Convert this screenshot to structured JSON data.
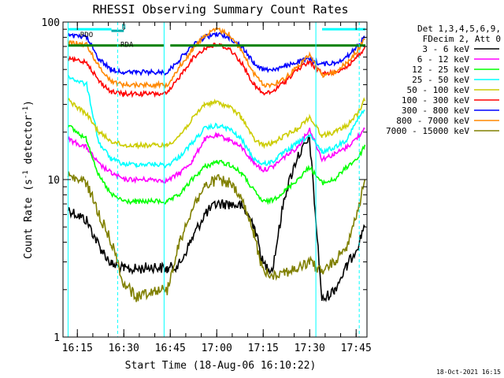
{
  "chart_data": {
    "type": "line",
    "title": "RHESSI Observing Summary Count Rates",
    "xlabel": "Start Time (18-Aug-06 16:10:22)",
    "ylabel": "Count Rate (s",
    "ylabel_sup": "-1",
    "ylabel_tail": " detector",
    "ylabel_close": ")",
    "y_scale": "log",
    "ylim": [
      1,
      100
    ],
    "xlim": [
      "16:10:22",
      "17:48:30"
    ],
    "y_ticks": [
      "1",
      "10",
      "100"
    ],
    "x_ticks": [
      "16:15",
      "16:30",
      "16:45",
      "17:00",
      "17:15",
      "17:30",
      "17:45"
    ],
    "legend_header": [
      "Det 1,3,4,5,6,9,",
      "FDecim 2, Att 0"
    ],
    "legend_position": "right",
    "flags": [
      "RDO",
      "N",
      "RDA"
    ],
    "footer": "18-Oct-2021 16:15",
    "series": [
      {
        "name": "3 - 6 keV",
        "color": "#000000",
        "x": [
          "16:12",
          "16:18",
          "16:22",
          "16:26",
          "16:30",
          "16:34",
          "16:40",
          "16:44",
          "16:48",
          "16:52",
          "16:56",
          "17:00",
          "17:04",
          "17:08",
          "17:12",
          "17:15",
          "17:18",
          "17:22",
          "17:26",
          "17:30",
          "17:34",
          "17:38",
          "17:42",
          "17:46",
          "17:48"
        ],
        "y": [
          6.5,
          5.5,
          3.8,
          2.9,
          2.7,
          2.7,
          2.8,
          2.7,
          2.9,
          4.2,
          6,
          7,
          7,
          6.8,
          5.2,
          2.9,
          2.7,
          8,
          14,
          18,
          1.7,
          2,
          2.8,
          4,
          5.5
        ]
      },
      {
        "name": "6 - 12 keV",
        "color": "#ff00ff",
        "x": [
          "16:12",
          "16:18",
          "16:22",
          "16:26",
          "16:30",
          "16:34",
          "16:40",
          "16:44",
          "16:48",
          "16:52",
          "16:56",
          "17:00",
          "17:04",
          "17:08",
          "17:12",
          "17:15",
          "17:18",
          "17:22",
          "17:26",
          "17:30",
          "17:34",
          "17:38",
          "17:42",
          "17:46",
          "17:48"
        ],
        "y": [
          18,
          16,
          12.5,
          11,
          10,
          10,
          10,
          9.8,
          11,
          13,
          18,
          19,
          18,
          16,
          12.8,
          11.5,
          12,
          14,
          16,
          21,
          13.5,
          14.5,
          16,
          19,
          22
        ]
      },
      {
        "name": "12 - 25 keV",
        "color": "#00ff00",
        "x": [
          "16:12",
          "16:18",
          "16:22",
          "16:26",
          "16:30",
          "16:34",
          "16:40",
          "16:44",
          "16:48",
          "16:52",
          "16:56",
          "17:00",
          "17:04",
          "17:08",
          "17:12",
          "17:15",
          "17:18",
          "17:22",
          "17:26",
          "17:30",
          "17:34",
          "17:38",
          "17:42",
          "17:46",
          "17:48"
        ],
        "y": [
          22,
          18,
          10.5,
          8,
          7.3,
          7.2,
          7.3,
          7.2,
          8,
          10,
          12,
          13,
          12.5,
          11,
          8.5,
          7.2,
          7.4,
          8.5,
          10,
          12,
          9.5,
          10,
          12,
          14,
          17
        ]
      },
      {
        "name": "25 - 50 keV",
        "color": "#00ffff",
        "x": [
          "16:12",
          "16:18",
          "16:22",
          "16:26",
          "16:30",
          "16:34",
          "16:40",
          "16:44",
          "16:48",
          "16:52",
          "16:56",
          "17:00",
          "17:04",
          "17:08",
          "17:12",
          "17:15",
          "17:18",
          "17:22",
          "17:26",
          "17:30",
          "17:34",
          "17:38",
          "17:42",
          "17:46",
          "17:48"
        ],
        "y": [
          45,
          40,
          17,
          13.5,
          12.5,
          12.5,
          12.5,
          12.3,
          14,
          17,
          21,
          22,
          21,
          18,
          13.5,
          12.5,
          13,
          15,
          17,
          19,
          15,
          16,
          18,
          25,
          28
        ]
      },
      {
        "name": "50 - 100 keV",
        "color": "#cccc00",
        "x": [
          "16:12",
          "16:18",
          "16:22",
          "16:26",
          "16:30",
          "16:34",
          "16:40",
          "16:44",
          "16:48",
          "16:52",
          "16:56",
          "17:00",
          "17:04",
          "17:08",
          "17:12",
          "17:15",
          "17:18",
          "17:22",
          "17:26",
          "17:30",
          "17:34",
          "17:38",
          "17:42",
          "17:46",
          "17:48"
        ],
        "y": [
          32,
          26,
          20,
          17.5,
          16.5,
          16.5,
          16.5,
          16.5,
          19,
          24,
          30,
          31,
          29,
          25,
          18,
          16.5,
          17,
          19,
          21,
          25,
          19,
          20,
          22,
          27,
          33
        ]
      },
      {
        "name": "100 - 300 keV",
        "color": "#ff0000",
        "x": [
          "16:12",
          "16:18",
          "16:22",
          "16:26",
          "16:30",
          "16:34",
          "16:40",
          "16:44",
          "16:48",
          "16:52",
          "16:56",
          "17:00",
          "17:04",
          "17:08",
          "17:12",
          "17:15",
          "17:18",
          "17:22",
          "17:26",
          "17:30",
          "17:34",
          "17:38",
          "17:42",
          "17:46",
          "17:48"
        ],
        "y": [
          58,
          56,
          42,
          36,
          35,
          35,
          35,
          35,
          45,
          58,
          68,
          72,
          68,
          55,
          40,
          35,
          36,
          42,
          50,
          56,
          47,
          48,
          52,
          62,
          68
        ]
      },
      {
        "name": "300 - 800 keV",
        "color": "#0000ff",
        "x": [
          "16:12",
          "16:18",
          "16:22",
          "16:26",
          "16:30",
          "16:34",
          "16:40",
          "16:44",
          "16:48",
          "16:52",
          "16:56",
          "17:00",
          "17:04",
          "17:08",
          "17:12",
          "17:15",
          "17:18",
          "17:22",
          "17:26",
          "17:30",
          "17:34",
          "17:38",
          "17:42",
          "17:46",
          "17:48"
        ],
        "y": [
          82,
          80,
          58,
          50,
          48,
          48,
          48,
          48,
          58,
          70,
          80,
          84,
          80,
          70,
          55,
          50,
          50,
          52,
          56,
          58,
          54,
          55,
          60,
          72,
          82
        ]
      },
      {
        "name": "800 - 7000 keV",
        "color": "#ff8800",
        "x": [
          "16:12",
          "16:18",
          "16:22",
          "16:26",
          "16:30",
          "16:34",
          "16:40",
          "16:44",
          "16:48",
          "16:52",
          "16:56",
          "17:00",
          "17:04",
          "17:08",
          "17:12",
          "17:15",
          "17:18",
          "17:22",
          "17:26",
          "17:30",
          "17:34",
          "17:38",
          "17:42",
          "17:46",
          "17:48"
        ],
        "y": [
          74,
          72,
          52,
          42,
          40,
          40,
          40,
          40,
          52,
          66,
          82,
          90,
          84,
          66,
          47,
          40,
          40,
          44,
          52,
          62,
          46,
          48,
          55,
          68,
          80
        ]
      },
      {
        "name": "7000 - 15000 keV",
        "color": "#808000",
        "x": [
          "16:12",
          "16:18",
          "16:22",
          "16:26",
          "16:30",
          "16:34",
          "16:40",
          "16:44",
          "16:48",
          "16:52",
          "16:56",
          "17:00",
          "17:04",
          "17:08",
          "17:12",
          "17:15",
          "17:18",
          "17:22",
          "17:26",
          "17:30",
          "17:34",
          "17:38",
          "17:42",
          "17:46",
          "17:48"
        ],
        "y": [
          10.5,
          9.5,
          6,
          4,
          2.2,
          1.8,
          2,
          2,
          4,
          6.5,
          9,
          10,
          9.5,
          7.5,
          4.5,
          2.6,
          2.5,
          2.6,
          2.7,
          3,
          2.6,
          3,
          3.8,
          7,
          10
        ]
      }
    ],
    "flag_lines": [
      {
        "name": "RDO",
        "color": "#00ffff",
        "segments": [
          [
            "16:12",
            "16:26"
          ],
          [
            "17:34",
            "17:48"
          ]
        ],
        "y": 90
      },
      {
        "name": "N",
        "color": "#00aaaa",
        "segments": [
          [
            "16:26",
            "16:30"
          ]
        ],
        "y": 88
      },
      {
        "name": "RDA",
        "color": "#008000",
        "segments": [
          [
            "16:12",
            "16:43"
          ],
          [
            "16:45",
            "17:48"
          ]
        ],
        "y": 71
      }
    ],
    "vertical_markers": [
      {
        "x": "16:12",
        "color": "#00ffff",
        "style": "solid"
      },
      {
        "x": "16:28",
        "color": "#00ffff",
        "style": "dashed"
      },
      {
        "x": "16:43",
        "color": "#00ffff",
        "style": "solid"
      },
      {
        "x": "17:32",
        "color": "#00ffff",
        "style": "solid"
      },
      {
        "x": "17:46",
        "color": "#00ffff",
        "style": "dashed"
      }
    ]
  }
}
